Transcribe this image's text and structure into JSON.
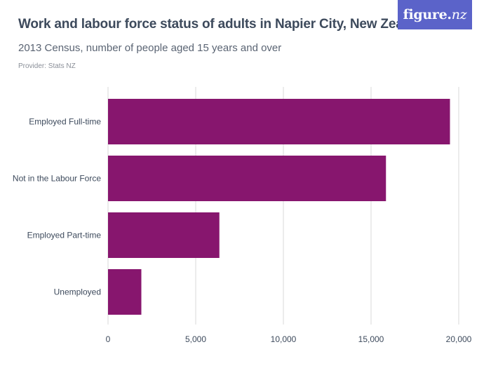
{
  "header": {
    "title": "Work and labour force status of adults in Napier City, New Zealand",
    "subtitle": "2013 Census, number of people aged 15 years and over",
    "provider": "Provider: Stats NZ",
    "logo_text": "figure.",
    "logo_tld": "nz"
  },
  "colors": {
    "bar": "#87166e",
    "grid": "#d9d9d9",
    "logo_bg": "#5b63c9"
  },
  "chart_data": {
    "type": "bar",
    "orientation": "horizontal",
    "categories": [
      "Employed Full-time",
      "Not in the Labour Force",
      "Employed Part-time",
      "Unemployed"
    ],
    "values": [
      19500,
      15850,
      6350,
      1900
    ],
    "xlim": [
      0,
      20000
    ],
    "xticks": [
      0,
      5000,
      10000,
      15000,
      20000
    ],
    "xtick_labels": [
      "0",
      "5,000",
      "10,000",
      "15,000",
      "20,000"
    ],
    "grid": true
  }
}
